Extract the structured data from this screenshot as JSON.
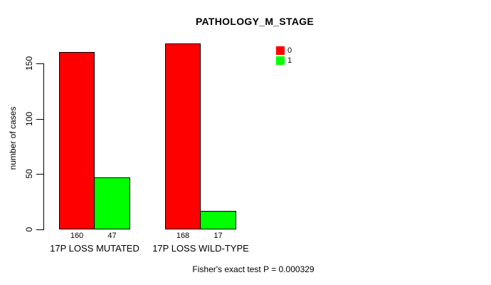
{
  "chart_data": {
    "type": "bar",
    "title": "PATHOLOGY_M_STAGE",
    "ylabel": "number of cases",
    "xlabel": "",
    "categories": [
      "17P LOSS MUTATED",
      "17P LOSS WILD-TYPE"
    ],
    "series": [
      {
        "name": "0",
        "color": "#ff0000",
        "values": [
          160,
          168
        ]
      },
      {
        "name": "1",
        "color": "#00ff00",
        "values": [
          47,
          17
        ]
      }
    ],
    "yticks": [
      0,
      50,
      100,
      150
    ],
    "ylim": [
      0,
      168
    ],
    "grid": false,
    "bar_value_labels_shown": true,
    "legend_position": "top-right",
    "footer": "Fisher's exact test P = 0.000329"
  },
  "colors": {
    "background": "#ffffff",
    "text": "#000000",
    "axis": "#000000",
    "bar_border": "#000000",
    "series_0": "#ff0000",
    "series_1": "#00ff00"
  }
}
